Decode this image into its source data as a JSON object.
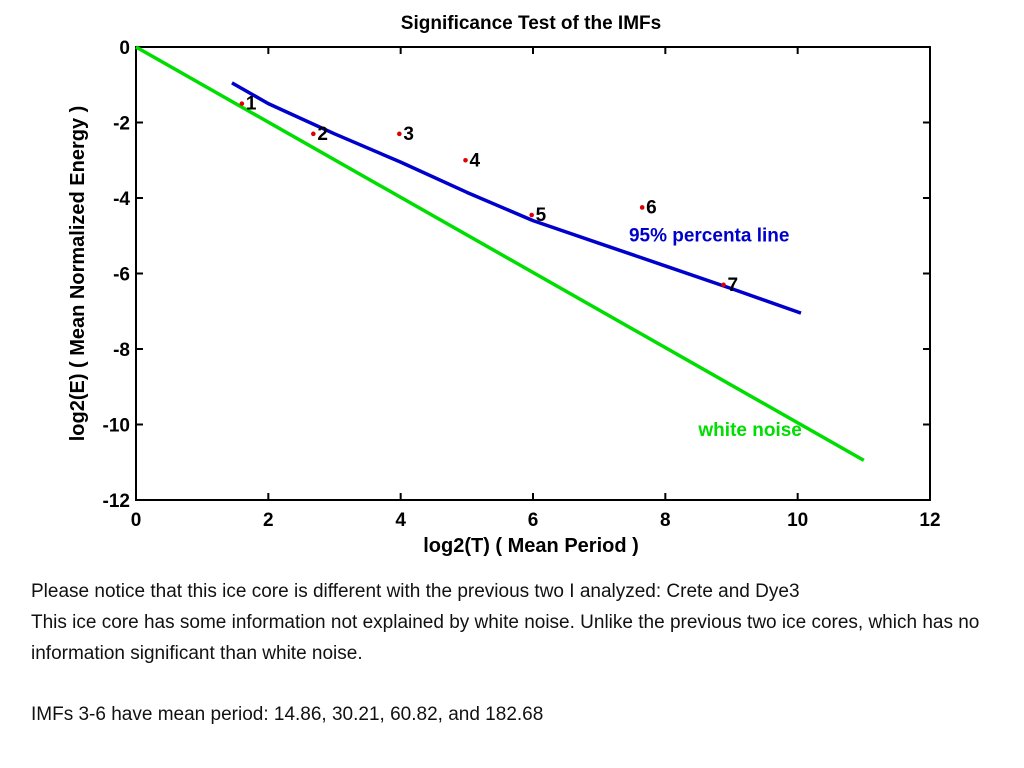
{
  "chart_data": {
    "type": "line",
    "title": "Significance Test of the IMFs",
    "xlabel": "log2(T) ( Mean Period )",
    "ylabel": "log2(E) ( Mean Normalized Energy )",
    "xlim": [
      0,
      12
    ],
    "ylim": [
      -12,
      0
    ],
    "xticks": [
      0,
      2,
      4,
      6,
      8,
      10,
      12
    ],
    "yticks": [
      0,
      -2,
      -4,
      -6,
      -8,
      -10,
      -12
    ],
    "grid": false,
    "series": [
      {
        "name": "95% percenta line",
        "color": "#0000cc",
        "x": [
          1.45,
          2.0,
          3.0,
          4.0,
          5.0,
          6.0,
          7.0,
          8.0,
          9.0,
          10.05
        ],
        "y": [
          -0.95,
          -1.5,
          -2.3,
          -3.05,
          -3.85,
          -4.6,
          -5.2,
          -5.8,
          -6.4,
          -7.05
        ]
      },
      {
        "name": "white noise",
        "color": "#00dd00",
        "x": [
          0,
          11
        ],
        "y": [
          0,
          -10.95
        ]
      }
    ],
    "points": {
      "color": "#dd0000",
      "labels": [
        "1",
        "2",
        "3",
        "4",
        "5",
        "6",
        "7"
      ],
      "x": [
        1.6,
        2.68,
        3.98,
        4.98,
        5.98,
        7.65,
        8.88
      ],
      "y": [
        -1.5,
        -2.3,
        -2.3,
        -3.0,
        -4.45,
        -4.25,
        -6.3
      ]
    }
  },
  "caption": {
    "line1": "Please notice that this ice core is different with the previous two I analyzed: Crete and Dye3",
    "line2": "This ice core has some information not explained by white noise. Unlike the previous two ice cores, which has no information significant than white noise.",
    "line3": "IMFs 3-6 have mean period:  14.86,  30.21,  60.82, and 182.68"
  }
}
